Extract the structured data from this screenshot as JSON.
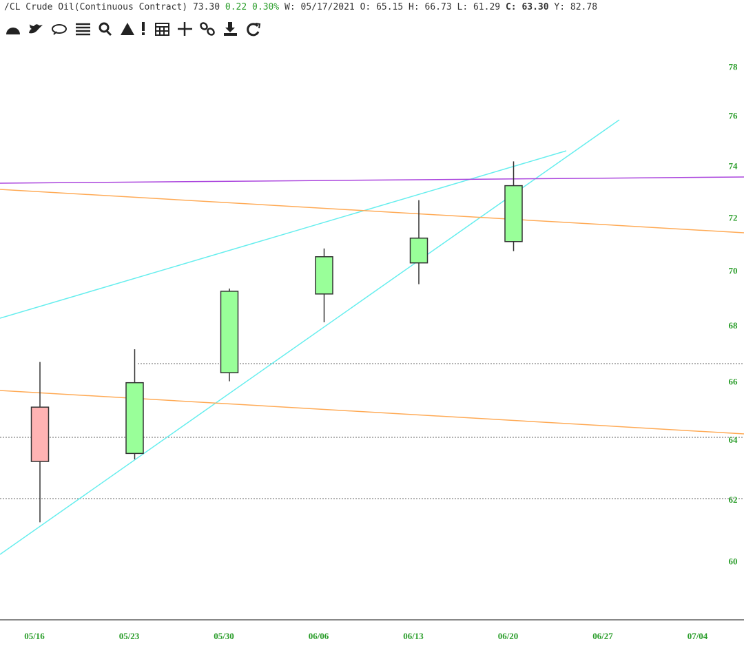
{
  "header": {
    "symbol": "/CL Crude Oil(Continuous Contract)",
    "last": "73.30",
    "change": "0.22 0.30%",
    "week": "W: 05/17/2021",
    "open_label": "O:",
    "open": "65.15",
    "high_label": "H:",
    "high": "66.73",
    "low_label": "L:",
    "low": "61.29",
    "close_label": "C:",
    "close": "63.30",
    "year_label": "Y:",
    "year": "82.78"
  },
  "chart_data": {
    "type": "candlestick",
    "categories": [
      "05/16",
      "05/23",
      "05/30",
      "06/06",
      "06/13",
      "06/20",
      "06/27",
      "07/04"
    ],
    "open": [
      65.15,
      63.57,
      66.35,
      69.18,
      70.33,
      71.13,
      null,
      null
    ],
    "high": [
      66.73,
      67.18,
      69.38,
      70.87,
      72.71,
      74.22,
      null,
      null
    ],
    "low": [
      61.29,
      63.37,
      66.05,
      68.15,
      69.54,
      70.77,
      null,
      null
    ],
    "close": [
      63.3,
      66.0,
      69.28,
      70.56,
      71.26,
      73.27,
      null,
      null
    ],
    "up_color": "#99ff99",
    "down_color": "#ffb3b3",
    "ylim": [
      58.2,
      79.1
    ],
    "yticks": [
      60,
      62,
      64,
      66,
      68,
      70,
      72,
      74,
      76,
      78
    ],
    "log_scale": true
  }
}
